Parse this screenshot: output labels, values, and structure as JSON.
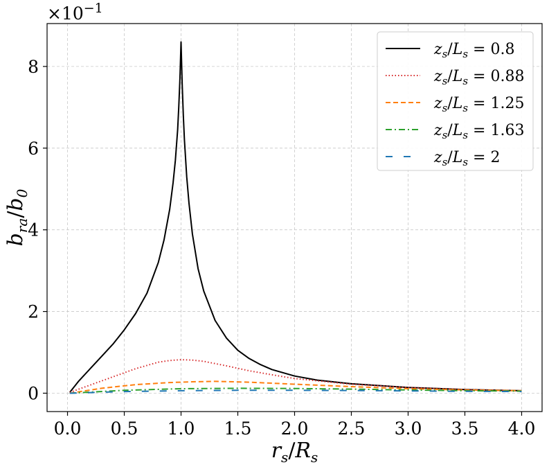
{
  "chart_data": {
    "type": "line",
    "xlabel": "r_s/R_s",
    "ylabel": "b_ra/b_0",
    "y_offset_label": "×10^−1",
    "xlim": [
      -0.18,
      4.18
    ],
    "ylim": [
      -0.45,
      9.05
    ],
    "xticks": [
      0.0,
      0.5,
      1.0,
      1.5,
      2.0,
      2.5,
      3.0,
      3.5,
      4.0
    ],
    "xtick_labels": [
      "0.0",
      "0.5",
      "1.0",
      "1.5",
      "2.0",
      "2.5",
      "3.0",
      "3.5",
      "4.0"
    ],
    "yticks": [
      0,
      2,
      4,
      6,
      8
    ],
    "ytick_labels": [
      "0",
      "2",
      "4",
      "6",
      "8"
    ],
    "grid": true,
    "legend_position": "top-right",
    "series": [
      {
        "name": "z_s/L_s = 0.8",
        "color": "#000000",
        "style": "solid",
        "x": [
          0.02,
          0.1,
          0.2,
          0.3,
          0.4,
          0.5,
          0.6,
          0.7,
          0.8,
          0.85,
          0.9,
          0.93,
          0.95,
          0.97,
          0.98,
          0.99,
          1.0,
          1.01,
          1.02,
          1.03,
          1.05,
          1.07,
          1.1,
          1.15,
          1.2,
          1.3,
          1.4,
          1.5,
          1.6,
          1.7,
          1.8,
          2.0,
          2.2,
          2.5,
          3.0,
          3.5,
          4.0
        ],
        "y": [
          0.02,
          0.3,
          0.6,
          0.9,
          1.2,
          1.55,
          1.95,
          2.45,
          3.2,
          3.75,
          4.5,
          5.15,
          5.7,
          6.45,
          7.0,
          7.7,
          8.6,
          7.6,
          6.8,
          6.2,
          5.3,
          4.65,
          3.9,
          3.05,
          2.5,
          1.78,
          1.35,
          1.05,
          0.85,
          0.7,
          0.58,
          0.42,
          0.32,
          0.23,
          0.14,
          0.09,
          0.06
        ]
      },
      {
        "name": "z_s/L_s = 0.88",
        "color": "#d62728",
        "style": "dotted",
        "x": [
          0.02,
          0.2,
          0.4,
          0.6,
          0.8,
          0.9,
          1.0,
          1.1,
          1.2,
          1.4,
          1.6,
          1.8,
          2.0,
          2.5,
          3.0,
          3.5,
          4.0
        ],
        "y": [
          0.02,
          0.2,
          0.4,
          0.6,
          0.76,
          0.8,
          0.82,
          0.81,
          0.78,
          0.67,
          0.55,
          0.45,
          0.36,
          0.22,
          0.14,
          0.09,
          0.06
        ]
      },
      {
        "name": "z_s/L_s = 1.25",
        "color": "#ff7f0e",
        "style": "dashed",
        "x": [
          0.02,
          0.3,
          0.6,
          0.9,
          1.1,
          1.3,
          1.6,
          2.0,
          2.5,
          3.0,
          3.5,
          4.0
        ],
        "y": [
          0.0,
          0.12,
          0.21,
          0.26,
          0.28,
          0.29,
          0.27,
          0.22,
          0.16,
          0.11,
          0.08,
          0.06
        ]
      },
      {
        "name": "z_s/L_s = 1.63",
        "color": "#2ca02c",
        "style": "dashdot",
        "x": [
          0.02,
          0.5,
          1.0,
          1.5,
          2.0,
          2.5,
          3.0,
          3.5,
          4.0
        ],
        "y": [
          0.0,
          0.07,
          0.11,
          0.12,
          0.115,
          0.1,
          0.08,
          0.06,
          0.05
        ]
      },
      {
        "name": "z_s/L_s = 2",
        "color": "#1f77b4",
        "style": "loosely-dashed",
        "x": [
          0.02,
          0.5,
          1.0,
          1.5,
          2.0,
          2.5,
          3.0,
          3.5,
          4.0
        ],
        "y": [
          0.0,
          0.04,
          0.06,
          0.07,
          0.07,
          0.065,
          0.055,
          0.045,
          0.04
        ]
      }
    ]
  }
}
